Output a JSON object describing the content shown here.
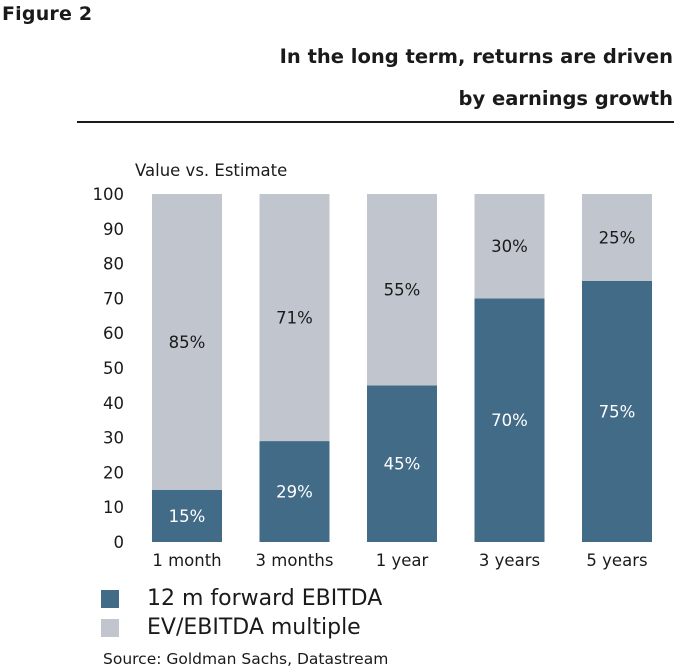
{
  "figure_label": "Figure 2",
  "title_lines": [
    "In the long term, returns are driven",
    "by earnings growth"
  ],
  "source": "Source: Goldman Sachs, Datastream",
  "colors": {
    "ebitda": "#426b88",
    "multiple": "#c0c5ce",
    "text": "#1a1a1a"
  },
  "chart_data": {
    "type": "bar",
    "stacked": true,
    "ylabel": "Value vs. Estimate",
    "ylim": [
      0,
      100
    ],
    "yticks": [
      "0",
      "10",
      "20",
      "30",
      "40",
      "50",
      "60",
      "70",
      "80",
      "90",
      "100"
    ],
    "categories": [
      "1 month",
      "3 months",
      "1 year",
      "3 years",
      "5 years"
    ],
    "series": [
      {
        "name": "12 m forward EBITDA",
        "values": [
          15,
          29,
          45,
          70,
          75
        ],
        "labels": [
          "15%",
          "29%",
          "45%",
          "70%",
          "75%"
        ]
      },
      {
        "name": "EV/EBITDA multiple",
        "values": [
          85,
          71,
          55,
          30,
          25
        ],
        "labels": [
          "85%",
          "71%",
          "55%",
          "30%",
          "25%"
        ]
      }
    ]
  }
}
